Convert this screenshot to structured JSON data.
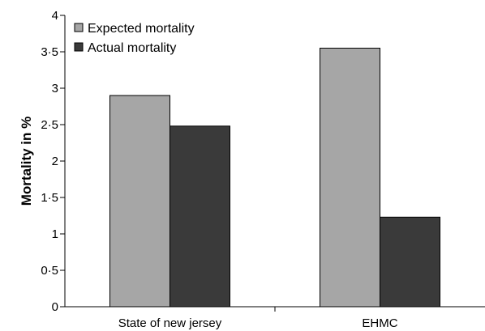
{
  "chart_data": {
    "type": "bar",
    "categories": [
      "State of new jersey",
      "EHMC"
    ],
    "series": [
      {
        "name": "Expected mortality",
        "values": [
          2.9,
          3.55
        ],
        "color": "#a6a6a6"
      },
      {
        "name": "Actual mortality",
        "values": [
          2.48,
          1.23
        ],
        "color": "#3a3a3a"
      }
    ],
    "xlabel": "",
    "ylabel": "Mortality in %",
    "ylim": [
      0,
      4
    ],
    "yticks": [
      0,
      0.5,
      1,
      1.5,
      2,
      2.5,
      3,
      3.5,
      4
    ],
    "ytick_labels": [
      "0",
      "0·5",
      "1",
      "1·5",
      "2",
      "2·5",
      "3",
      "3·5",
      "4"
    ],
    "grid": false,
    "legend": "top-left"
  }
}
